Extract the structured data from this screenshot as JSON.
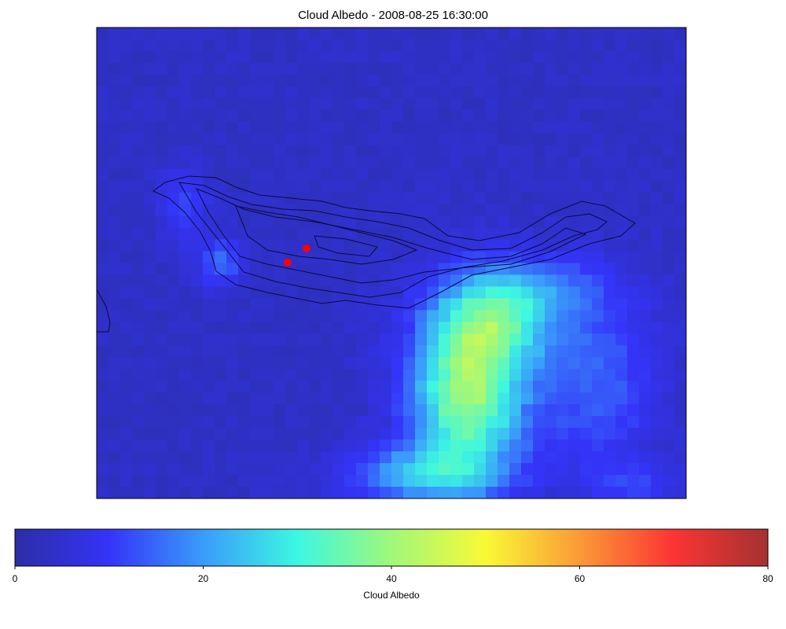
{
  "chart_data": {
    "type": "heatmap",
    "title": "Cloud Albedo - 2008-08-25 16:30:00",
    "colorbar": {
      "label": "Cloud Albedo",
      "range": [
        0,
        80
      ],
      "ticks": [
        "0",
        "20",
        "40",
        "60",
        "80"
      ],
      "orientation": "horizontal",
      "colormap": "jet"
    },
    "grid": false,
    "overlay": {
      "contours": "black elevation contour lines over an island",
      "markers": [
        {
          "label": "",
          "color": "#ff0000"
        },
        {
          "label": "",
          "color": "#ff0000"
        }
      ]
    },
    "field_description_values": {
      "background_albedo": 3,
      "plume_peak_albedo": 38,
      "island_west_edge_albedo": 15
    }
  },
  "colors": {
    "jet": [
      "#000080",
      "#0000ff",
      "#00ffff",
      "#ffff00",
      "#ff0000",
      "#800000"
    ],
    "marker": "#ff0000",
    "contour": "#000033"
  }
}
